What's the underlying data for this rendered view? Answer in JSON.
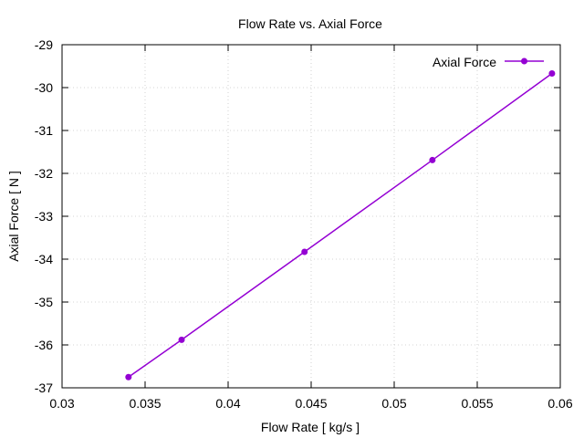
{
  "chart_data": {
    "type": "line",
    "title": "Flow Rate vs. Axial Force",
    "xlabel": "Flow Rate [ kg/s ]",
    "ylabel": "Axial Force [ N ]",
    "xlim": [
      0.03,
      0.06
    ],
    "ylim": [
      -37,
      -29
    ],
    "x_ticks": [
      0.03,
      0.035,
      0.04,
      0.045,
      0.05,
      0.055,
      0.06
    ],
    "x_tick_labels": [
      "0.03",
      "0.035",
      "0.04",
      "0.045",
      "0.05",
      "0.055",
      "0.06"
    ],
    "y_ticks": [
      -37,
      -36,
      -35,
      -34,
      -33,
      -32,
      -31,
      -30,
      -29
    ],
    "y_tick_labels": [
      "-37",
      "-36",
      "-35",
      "-34",
      "-33",
      "-32",
      "-31",
      "-30",
      "-29"
    ],
    "grid": true,
    "legend_position": "top-right",
    "series": [
      {
        "name": "Axial Force",
        "color": "#9400D3",
        "x": [
          0.034,
          0.0372,
          0.0446,
          0.0523,
          0.0595
        ],
        "y": [
          -36.75,
          -35.88,
          -33.83,
          -31.69,
          -29.67
        ]
      }
    ]
  }
}
